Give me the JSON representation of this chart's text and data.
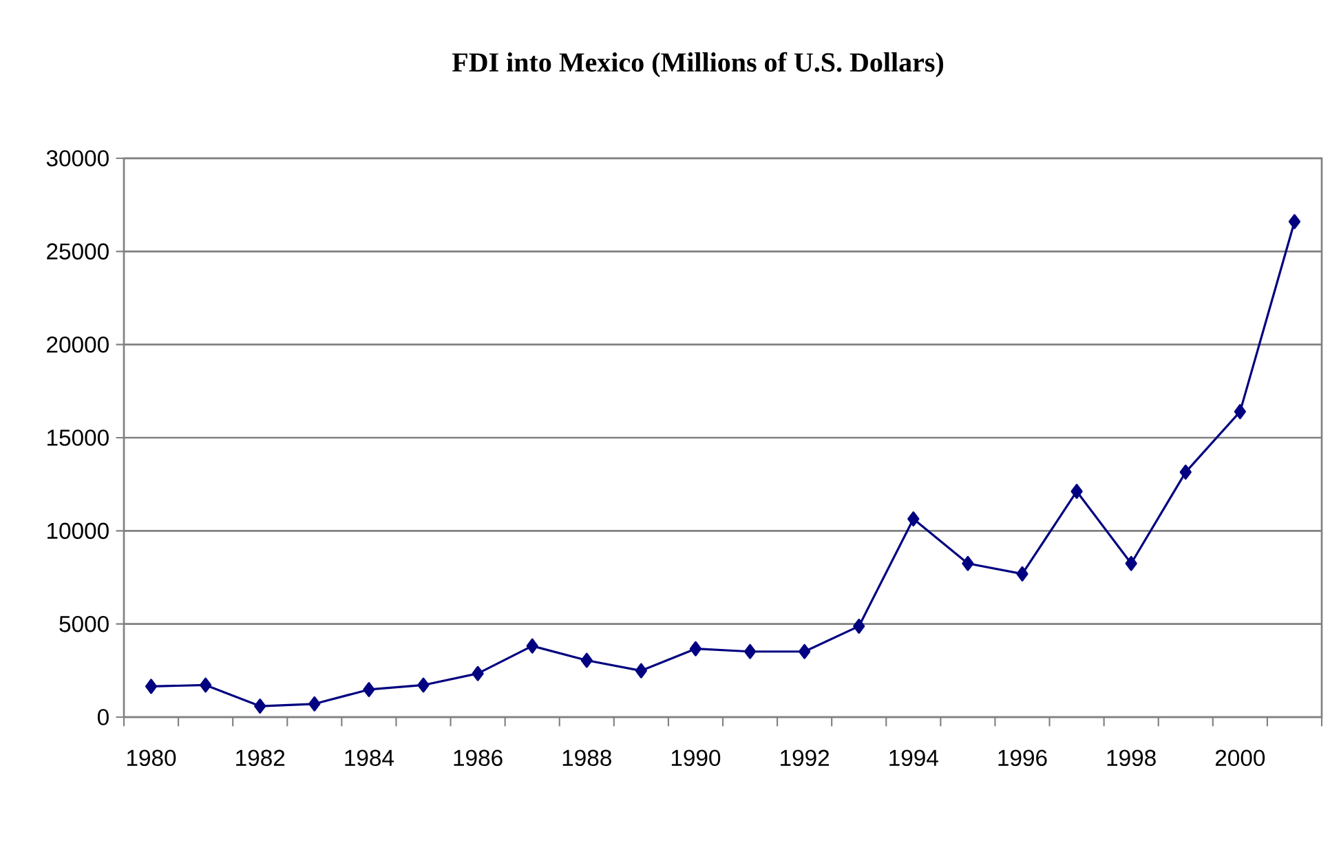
{
  "chart_data": {
    "type": "line",
    "title": "FDI into Mexico (Millions of U.S. Dollars)",
    "categories": [
      "1980",
      null,
      "1982",
      null,
      "1984",
      null,
      "1986",
      null,
      "1988",
      null,
      "1990",
      null,
      "1992",
      null,
      "1994",
      null,
      "1996",
      null,
      "1998",
      null,
      "2000",
      null
    ],
    "values": [
      1650,
      1720,
      590,
      710,
      1480,
      1720,
      2340,
      3820,
      3050,
      2490,
      3670,
      3520,
      3520,
      4880,
      10640,
      8250,
      7690,
      12120,
      8250,
      13150,
      16400,
      26600
    ],
    "color": "#000080",
    "marker": "diamond",
    "line_style": "solid",
    "ylim": [
      0,
      30000
    ],
    "yticks": [
      0,
      5000,
      10000,
      15000,
      20000,
      25000,
      30000
    ],
    "grid": "y"
  }
}
